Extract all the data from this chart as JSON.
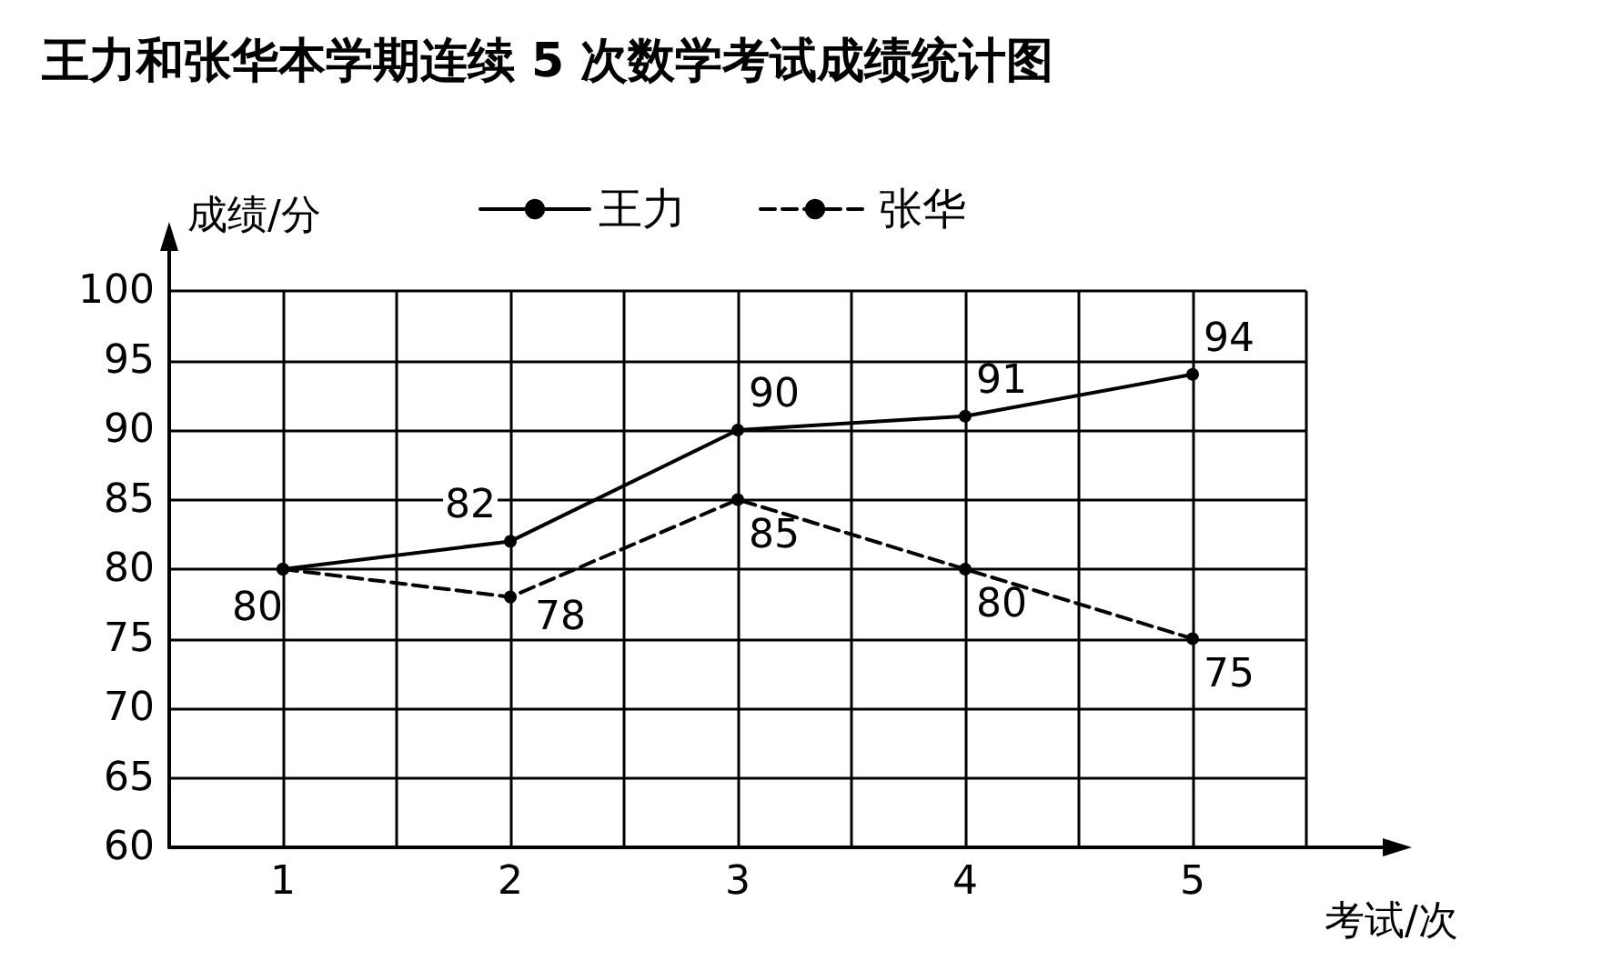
{
  "chart_data": {
    "type": "line",
    "title": "王力和张华本学期连续 5 次数学考试成绩统计图",
    "xlabel": "考试/次",
    "ylabel": "成绩/分",
    "x": [
      1,
      2,
      3,
      4,
      5
    ],
    "series": [
      {
        "name": "王力",
        "color": "#000000",
        "line_style": "solid",
        "values": [
          80,
          82,
          90,
          91,
          94
        ],
        "value_labels": [
          null,
          "82",
          "90",
          "91",
          "94"
        ]
      },
      {
        "name": "张华",
        "color": "#000000",
        "line_style": "dashed",
        "values": [
          80,
          78,
          85,
          80,
          75
        ],
        "value_labels": [
          "80",
          "78",
          "85",
          "80",
          "75"
        ]
      }
    ],
    "xlim": [
      0.5,
      5.5
    ],
    "xticks": [
      {
        "value": 0.5,
        "label": null
      },
      1,
      {
        "value": 1.5,
        "label": null
      },
      2,
      {
        "value": 2.5,
        "label": null
      },
      3,
      {
        "value": 3.5,
        "label": null
      },
      4,
      {
        "value": 4.5,
        "label": null
      },
      5,
      {
        "value": 5.5,
        "label": null
      }
    ],
    "ylim": [
      60,
      100
    ],
    "yticks": [
      60,
      65,
      70,
      75,
      80,
      85,
      90,
      95,
      100
    ],
    "grid": true,
    "legend": "top",
    "marker": "circle"
  }
}
